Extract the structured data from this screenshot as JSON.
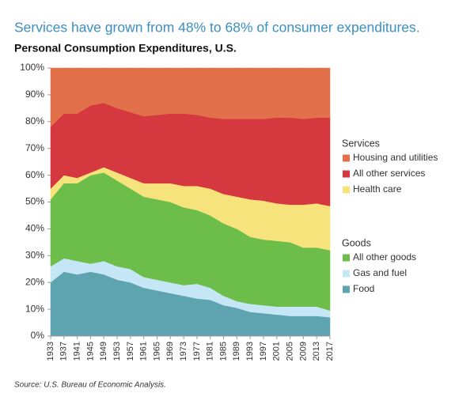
{
  "chart_data": {
    "type": "stacked-area",
    "title": "Services have grown from 48% to 68% of consumer expenditures.",
    "subtitle": "Personal Consumption Expenditures, U.S.",
    "source": "Source: U.S. Bureau of Economic Analysis.",
    "x": [
      1933,
      1937,
      1941,
      1945,
      1949,
      1953,
      1957,
      1961,
      1965,
      1969,
      1973,
      1977,
      1981,
      1985,
      1989,
      1993,
      1997,
      2001,
      2005,
      2009,
      2013,
      2017
    ],
    "xlim": [
      1933,
      2017
    ],
    "xticks": [
      1933,
      1937,
      1941,
      1945,
      1949,
      1953,
      1957,
      1961,
      1965,
      1969,
      1973,
      1977,
      1981,
      1985,
      1989,
      1993,
      1997,
      2001,
      2005,
      2009,
      2013,
      2017
    ],
    "ylim": [
      0,
      100
    ],
    "yticks": [
      {
        "value": 0,
        "label": "0%"
      },
      {
        "value": 10,
        "label": "10%"
      },
      {
        "value": 20,
        "label": "20%"
      },
      {
        "value": 30,
        "label": "30%"
      },
      {
        "value": 40,
        "label": "40%"
      },
      {
        "value": 50,
        "label": "50%"
      },
      {
        "value": 60,
        "label": "60%"
      },
      {
        "value": 70,
        "label": "70%"
      },
      {
        "value": 80,
        "label": "80%"
      },
      {
        "value": 90,
        "label": "90%"
      },
      {
        "value": 100,
        "label": "100%"
      }
    ],
    "series": [
      {
        "name": "Food",
        "group": "Goods",
        "color": "#5da4b0",
        "values": [
          20,
          24,
          23,
          24,
          23,
          21,
          20,
          18,
          17,
          16,
          15,
          14,
          13.5,
          11.5,
          10.5,
          9,
          8.5,
          8,
          7.5,
          7.5,
          7.5,
          7
        ]
      },
      {
        "name": "Gas and fuel",
        "group": "Goods",
        "color": "#c5e6f4",
        "values": [
          6,
          5,
          5,
          3,
          5,
          5,
          5,
          4,
          4,
          4,
          4,
          5.5,
          4.5,
          3.5,
          2.5,
          3,
          3,
          3,
          3.5,
          3.5,
          3.5,
          2.5
        ]
      },
      {
        "name": "All other goods",
        "group": "Goods",
        "color": "#6cbd4a",
        "values": [
          25,
          28,
          29,
          33,
          33,
          32,
          30,
          30,
          30,
          30,
          29,
          27.5,
          27,
          27,
          27,
          25,
          24.5,
          24.5,
          24,
          22,
          22,
          22.5
        ]
      },
      {
        "name": "Health care",
        "group": "Services",
        "color": "#f6e37b",
        "values": [
          4,
          3,
          2,
          1,
          2,
          3,
          4,
          5,
          6,
          7,
          8,
          9,
          10,
          11,
          12,
          14,
          14.5,
          14,
          14,
          16,
          16.5,
          16.5
        ]
      },
      {
        "name": "All other services",
        "group": "Services",
        "color": "#d5383e",
        "values": [
          23,
          23,
          24,
          25,
          24,
          24,
          24.5,
          25,
          25.5,
          26,
          27,
          26.5,
          26.5,
          28,
          29,
          30,
          30.5,
          32,
          32.5,
          32,
          32,
          33
        ]
      },
      {
        "name": "Housing and utilities",
        "group": "Services",
        "color": "#e2704b",
        "values": [
          22,
          17,
          17,
          14,
          13,
          15,
          16.5,
          18,
          17.5,
          17,
          17,
          17.5,
          18.5,
          19,
          19,
          19,
          19,
          18.5,
          18.5,
          19,
          18.5,
          18.5
        ]
      }
    ]
  }
}
